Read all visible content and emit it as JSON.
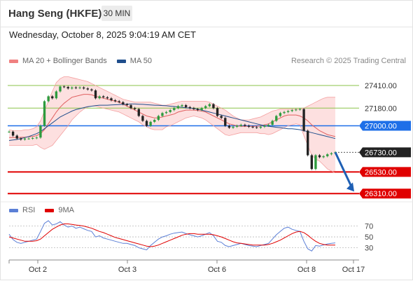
{
  "header": {
    "title": "Hang Seng (HKFE)",
    "timeframe": "30 MIN"
  },
  "timestamp": "Wednesday, October 8, 2025 9:04:19 AM CET",
  "legend": [
    {
      "label": "MA 20 + Bollinger Bands",
      "color": "#f08080"
    },
    {
      "label": "MA 50",
      "color": "#1f4e8c"
    }
  ],
  "credit": "Research © 2025 Trading Central",
  "rsi_legend": [
    {
      "label": "RSI",
      "color": "#5b7fd6"
    },
    {
      "label": "9MA",
      "color": "#e00000"
    }
  ],
  "colors": {
    "resistance": "#8bc34a",
    "pivot": "#1e6fe8",
    "support": "#e00000",
    "current": "#222222",
    "arrow": "#1e5fb4",
    "band_fill": "#fde0e0"
  },
  "chart_data": [
    {
      "type": "line",
      "title": "",
      "series_desc": "30-minute price with MA 20, Bollinger Bands and MA 50",
      "x_ticks": [
        "Oct 2",
        "Oct 3",
        "Oct 6",
        "Oct 8",
        "Oct 17"
      ],
      "ylim": [
        26240,
        27560
      ],
      "levels": [
        {
          "label": "27410.00",
          "value": 27410,
          "kind": "resistance"
        },
        {
          "label": "27180.00",
          "value": 27180,
          "kind": "resistance"
        },
        {
          "label": "27000.00",
          "value": 27000,
          "kind": "pivot"
        },
        {
          "label": "26730.00",
          "value": 26730,
          "kind": "current"
        },
        {
          "label": "26530.00",
          "value": 26530,
          "kind": "support"
        },
        {
          "label": "26310.00",
          "value": 26310,
          "kind": "support"
        }
      ],
      "price": [
        26940,
        26900,
        26870,
        26860,
        26870,
        26870,
        26875,
        26880,
        27000,
        27250,
        27300,
        27280,
        27350,
        27400,
        27395,
        27380,
        27390,
        27385,
        27390,
        27380,
        27370,
        27360,
        27280,
        27300,
        27290,
        27280,
        27260,
        27250,
        27240,
        27220,
        27210,
        27180,
        27170,
        27100,
        27050,
        27000,
        27040,
        27060,
        27100,
        27130,
        27140,
        27160,
        27180,
        27200,
        27210,
        27190,
        27180,
        27170,
        27160,
        27180,
        27200,
        27220,
        27180,
        27100,
        27080,
        27000,
        26980,
        26990,
        27000,
        27010,
        27000,
        26990,
        26985,
        26980,
        26990,
        27000,
        27010,
        27050,
        27100,
        27130,
        27140,
        27150,
        27160,
        27165,
        27170,
        26950,
        26700,
        26560,
        26700,
        26680,
        26690,
        26710,
        26720,
        26730
      ],
      "ma20": [
        26880,
        26880,
        26880,
        26882,
        26884,
        26888,
        26890,
        26900,
        26920,
        26960,
        27020,
        27080,
        27140,
        27190,
        27230,
        27260,
        27290,
        27300,
        27310,
        27320,
        27320,
        27315,
        27300,
        27290,
        27280,
        27270,
        27260,
        27250,
        27240,
        27220,
        27200,
        27180,
        27160,
        27140,
        27120,
        27100,
        27090,
        27080,
        27080,
        27090,
        27100,
        27110,
        27120,
        27140,
        27150,
        27160,
        27160,
        27160,
        27155,
        27150,
        27140,
        27120,
        27100,
        27080,
        27060,
        27040,
        27020,
        27010,
        27000,
        26995,
        26995,
        26995,
        26995,
        26995,
        27000,
        27010,
        27020,
        27040,
        27060,
        27080,
        27100,
        27110,
        27110,
        27110,
        27100,
        27080,
        27050,
        27010,
        26980,
        26950,
        26930,
        26910,
        26900,
        26890
      ],
      "bb_upper": [
        26960,
        26950,
        26950,
        26950,
        26960,
        26960,
        26970,
        26990,
        27050,
        27150,
        27250,
        27350,
        27440,
        27480,
        27500,
        27500,
        27490,
        27480,
        27470,
        27460,
        27450,
        27430,
        27410,
        27390,
        27370,
        27350,
        27330,
        27310,
        27290,
        27270,
        27260,
        27250,
        27240,
        27240,
        27240,
        27240,
        27240,
        27230,
        27220,
        27210,
        27210,
        27220,
        27230,
        27240,
        27250,
        27250,
        27250,
        27250,
        27250,
        27250,
        27250,
        27240,
        27220,
        27200,
        27180,
        27160,
        27130,
        27100,
        27080,
        27060,
        27060,
        27060,
        27070,
        27080,
        27090,
        27110,
        27130,
        27150,
        27160,
        27170,
        27170,
        27170,
        27170,
        27170,
        27170,
        27180,
        27200,
        27220,
        27240,
        27260,
        27280,
        27290,
        27290,
        27290
      ],
      "bb_lower": [
        26800,
        26800,
        26800,
        26800,
        26800,
        26800,
        26800,
        26810,
        26780,
        26760,
        26780,
        26800,
        26850,
        26900,
        26950,
        27000,
        27060,
        27100,
        27140,
        27170,
        27190,
        27200,
        27200,
        27190,
        27180,
        27170,
        27160,
        27150,
        27140,
        27120,
        27100,
        27080,
        27060,
        27040,
        27010,
        26990,
        26970,
        26960,
        26960,
        26960,
        26990,
        27000,
        27020,
        27040,
        27060,
        27080,
        27090,
        27100,
        27090,
        27080,
        27060,
        27030,
        27000,
        26970,
        26940,
        26910,
        26900,
        26910,
        26920,
        26930,
        26930,
        26930,
        26930,
        26930,
        26920,
        26920,
        26910,
        26920,
        26940,
        26960,
        26980,
        27000,
        27010,
        27020,
        27010,
        26900,
        26800,
        26700,
        26660,
        26640,
        26600,
        26560,
        26540,
        26520
      ],
      "ma50": [
        26850,
        26855,
        26860,
        26870,
        26880,
        26890,
        26905,
        26920,
        26940,
        26970,
        27000,
        27030,
        27060,
        27090,
        27110,
        27130,
        27150,
        27165,
        27175,
        27185,
        27195,
        27200,
        27205,
        27210,
        27210,
        27210,
        27212,
        27214,
        27216,
        27218,
        27220,
        27222,
        27222,
        27220,
        27218,
        27215,
        27212,
        27210,
        27208,
        27206,
        27204,
        27200,
        27196,
        27192,
        27188,
        27184,
        27180,
        27176,
        27170,
        27160,
        27150,
        27140,
        27130,
        27120,
        27110,
        27100,
        27090,
        27080,
        27070,
        27060,
        27050,
        27040,
        27030,
        27020,
        27010,
        27000,
        26995,
        26990,
        26985,
        26980,
        26975,
        26970,
        26970,
        26965,
        26960,
        26950,
        26940,
        26930,
        26920,
        26910,
        26900,
        26890,
        26880,
        26870
      ]
    },
    {
      "type": "line",
      "title": "",
      "series": [
        {
          "name": "RSI",
          "values": [
            55,
            45,
            40,
            38,
            40,
            42,
            44,
            46,
            60,
            75,
            80,
            72,
            74,
            78,
            72,
            68,
            70,
            66,
            68,
            65,
            62,
            60,
            50,
            52,
            48,
            46,
            44,
            42,
            40,
            38,
            38,
            36,
            34,
            30,
            28,
            26,
            34,
            40,
            46,
            50,
            52,
            55,
            57,
            58,
            59,
            56,
            54,
            52,
            50,
            52,
            55,
            58,
            52,
            42,
            40,
            34,
            32,
            34,
            36,
            38,
            36,
            34,
            33,
            32,
            34,
            36,
            38,
            46,
            54,
            60,
            66,
            68,
            64,
            62,
            60,
            42,
            28,
            24,
            34,
            33,
            35,
            37,
            38,
            39
          ]
        },
        {
          "name": "9MA",
          "values": [
            50,
            48,
            46,
            44,
            42,
            42,
            42,
            43,
            46,
            52,
            58,
            64,
            68,
            72,
            74,
            74,
            73,
            72,
            71,
            70,
            68,
            66,
            63,
            60,
            58,
            55,
            52,
            49,
            47,
            45,
            43,
            41,
            39,
            37,
            35,
            33,
            32,
            33,
            35,
            38,
            41,
            44,
            47,
            50,
            53,
            55,
            56,
            56,
            55,
            55,
            55,
            55,
            54,
            52,
            50,
            47,
            44,
            41,
            39,
            38,
            37,
            36,
            35,
            35,
            35,
            35,
            36,
            38,
            41,
            44,
            48,
            52,
            56,
            59,
            60,
            58,
            53,
            47,
            42,
            38,
            36,
            35,
            35,
            35
          ]
        }
      ],
      "ylim": [
        10,
        85
      ],
      "y_ticks": [
        70,
        50,
        30
      ]
    }
  ]
}
